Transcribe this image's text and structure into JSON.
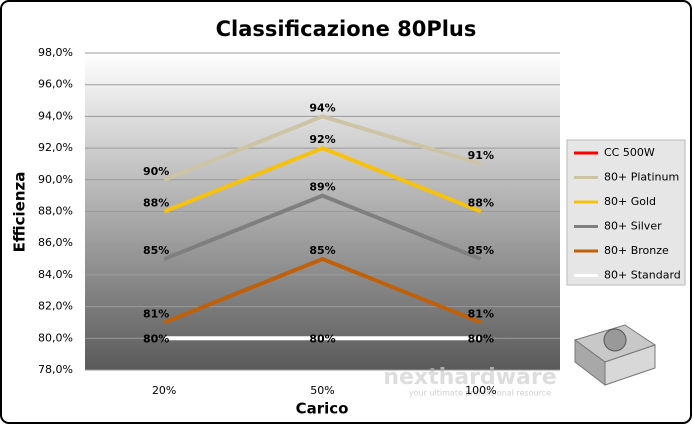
{
  "chart_data": {
    "type": "line",
    "title": "Classificazione 80Plus",
    "x_label": "Carico",
    "y_label": "Efficienza",
    "categories": [
      "20%",
      "50%",
      "100%"
    ],
    "ylim": [
      78,
      98
    ],
    "yticks": [
      {
        "value": 78,
        "label": "78,0%"
      },
      {
        "value": 80,
        "label": "80,0%"
      },
      {
        "value": 82,
        "label": "82,0%"
      },
      {
        "value": 84,
        "label": "84,0%"
      },
      {
        "value": 86,
        "label": "86,0%"
      },
      {
        "value": 88,
        "label": "88,0%"
      },
      {
        "value": 90,
        "label": "90,0%"
      },
      {
        "value": 92,
        "label": "92,0%"
      },
      {
        "value": 94,
        "label": "94,0%"
      },
      {
        "value": 96,
        "label": "96,0%"
      },
      {
        "value": 98,
        "label": "98,0%"
      }
    ],
    "grid": true,
    "legend": "right",
    "series": [
      {
        "name": "CC 500W",
        "color": "#ff0000",
        "values": [
          null,
          null,
          null
        ]
      },
      {
        "name": "80+ Platinum",
        "color": "#cdc4a6",
        "values": [
          90,
          94,
          91
        ],
        "value_labels": [
          "90%",
          "94%",
          "91%"
        ]
      },
      {
        "name": "80+ Gold",
        "color": "#f6c10f",
        "values": [
          88,
          92,
          88
        ],
        "value_labels": [
          "88%",
          "92%",
          "88%"
        ]
      },
      {
        "name": "80+ Silver",
        "color": "#7f7f7f",
        "values": [
          85,
          89,
          85
        ],
        "value_labels": [
          "85%",
          "89%",
          "85%"
        ]
      },
      {
        "name": "80+ Bronze",
        "color": "#c0600a",
        "values": [
          81,
          85,
          81
        ],
        "value_labels": [
          "81%",
          "85%",
          "81%"
        ]
      },
      {
        "name": "80+ Standard",
        "color": "#ffffff",
        "values": [
          80,
          80,
          80
        ],
        "value_labels": [
          "80%",
          "80%",
          "80%"
        ]
      }
    ],
    "watermark": "nexthardware",
    "watermark_tagline": "your ultimate professional resource"
  }
}
